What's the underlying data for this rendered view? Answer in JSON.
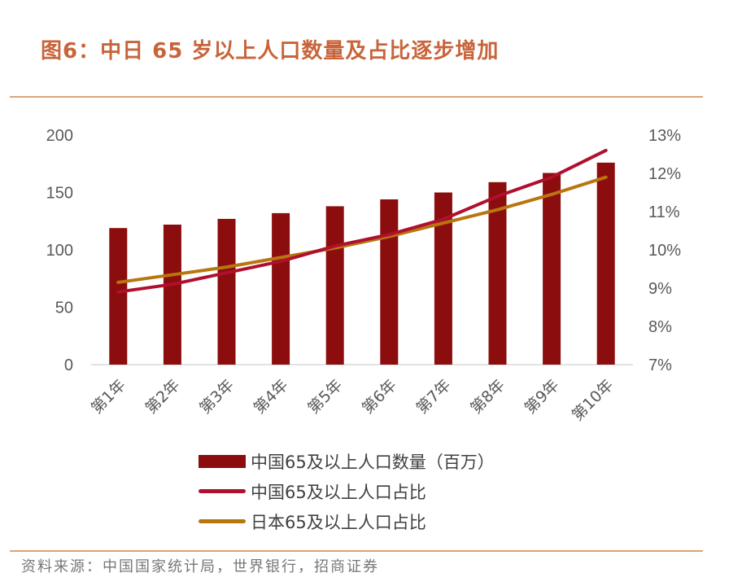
{
  "title": "图6：中日 65 岁以上人口数量及占比逐步增加",
  "source": "资料来源：中国国家统计局，世界银行，招商证券",
  "colors": {
    "bar": "#8b0d0d",
    "china_line": "#b0102e",
    "japan_line": "#b8760e",
    "axis": "#d9d9d9"
  },
  "chart_data": {
    "type": "bar+line",
    "categories": [
      "第1年",
      "第2年",
      "第3年",
      "第4年",
      "第5年",
      "第6年",
      "第7年",
      "第8年",
      "第9年",
      "第10年"
    ],
    "y_left": {
      "ylim": [
        0,
        200
      ],
      "ticks": [
        "200",
        "150",
        "100",
        "50",
        "0"
      ],
      "tick_values": [
        200,
        150,
        100,
        50,
        0
      ]
    },
    "y_right": {
      "ylim": [
        7,
        13
      ],
      "ticks": [
        "13%",
        "12%",
        "11%",
        "10%",
        "9%",
        "8%",
        "7%"
      ],
      "tick_values": [
        13,
        12,
        11,
        10,
        9,
        8,
        7
      ]
    },
    "series": [
      {
        "name": "中国65及以上人口数量（百万）",
        "type": "bar",
        "axis": "left",
        "values": [
          119,
          122,
          127,
          132,
          138,
          144,
          150,
          159,
          167,
          176
        ]
      },
      {
        "name": "中国65及以上人口占比",
        "type": "line",
        "axis": "right",
        "values": [
          8.9,
          9.1,
          9.4,
          9.7,
          10.1,
          10.4,
          10.8,
          11.4,
          11.9,
          12.6
        ]
      },
      {
        "name": "日本65及以上人口占比",
        "type": "line",
        "axis": "right",
        "values": [
          9.15,
          9.35,
          9.55,
          9.8,
          10.05,
          10.35,
          10.7,
          11.05,
          11.45,
          11.9
        ]
      }
    ],
    "legend_position": "bottom"
  }
}
